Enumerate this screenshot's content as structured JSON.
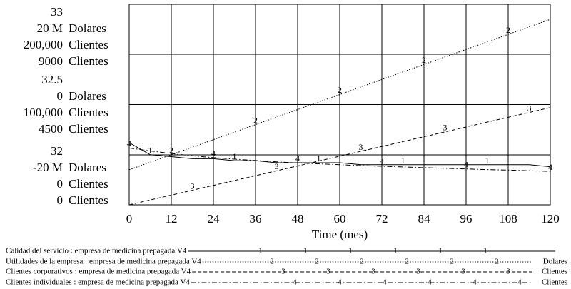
{
  "chart_data": {
    "type": "line",
    "x_label": "Time (mes)",
    "x": [
      0,
      6,
      12,
      18,
      24,
      30,
      36,
      42,
      48,
      54,
      60,
      66,
      72,
      78,
      84,
      90,
      96,
      102,
      108,
      114,
      120
    ],
    "xlim": [
      0,
      120
    ],
    "xticks": [
      0,
      12,
      24,
      36,
      48,
      60,
      72,
      84,
      96,
      108,
      120
    ],
    "grid": true,
    "series": [
      {
        "name": "Calidad del servicio : empresa de medicina prepagada V4",
        "marker": "1",
        "color": "#000000",
        "line_style": "solid",
        "ylim": [
          32,
          33
        ],
        "yticks": [
          32,
          32.5,
          33
        ],
        "values": [
          32.31,
          32.25,
          32.24,
          32.23,
          32.23,
          32.22,
          32.22,
          32.21,
          32.21,
          32.21,
          32.21,
          32.2,
          32.2,
          32.2,
          32.2,
          32.2,
          32.2,
          32.2,
          32.2,
          32.2,
          32.19
        ]
      },
      {
        "name": "Utilidades de la empresa : empresa de medicina prepagada V4",
        "marker": "2",
        "unit": "Dolares",
        "color": "#000000",
        "line_style": "dotted",
        "ylim": [
          -20,
          20
        ],
        "yticks": [
          {
            "value": -20,
            "label": "-20 M"
          },
          0,
          {
            "value": 20,
            "label": "20 M"
          }
        ],
        "values": [
          -13,
          -11.5,
          -10,
          -8.5,
          -7,
          -5.5,
          -4,
          -2.5,
          -1,
          0.5,
          2,
          3.5,
          5,
          6.5,
          8,
          9.5,
          11,
          12.5,
          14,
          15.5,
          17
        ]
      },
      {
        "name": "Clientes corporativos : empresa de medicina prepagada V4",
        "marker": "3",
        "unit": "Clientes",
        "color": "#000000",
        "line_style": "dashed",
        "ylim": [
          0,
          200000
        ],
        "yticks": [
          0,
          {
            "value": 100000,
            "label": "100,000"
          },
          {
            "value": 200000,
            "label": "200,000"
          }
        ],
        "values": [
          0,
          4850,
          9700,
          14550,
          19400,
          24250,
          29100,
          33950,
          38800,
          43650,
          48500,
          53350,
          58200,
          63050,
          67900,
          72750,
          77600,
          82450,
          87300,
          92150,
          97000
        ]
      },
      {
        "name": "Clientes individuales : empresa de medicina prepagada V4",
        "marker": "4",
        "unit": "Clientes",
        "color": "#000000",
        "line_style": "dashdot",
        "ylim": [
          0,
          9000
        ],
        "yticks": [
          0,
          4500,
          9000
        ],
        "values": [
          2550,
          2420,
          2300,
          2200,
          2120,
          2050,
          1990,
          1930,
          1880,
          1840,
          1800,
          1760,
          1730,
          1700,
          1670,
          1640,
          1610,
          1580,
          1560,
          1530,
          1500
        ]
      }
    ]
  }
}
